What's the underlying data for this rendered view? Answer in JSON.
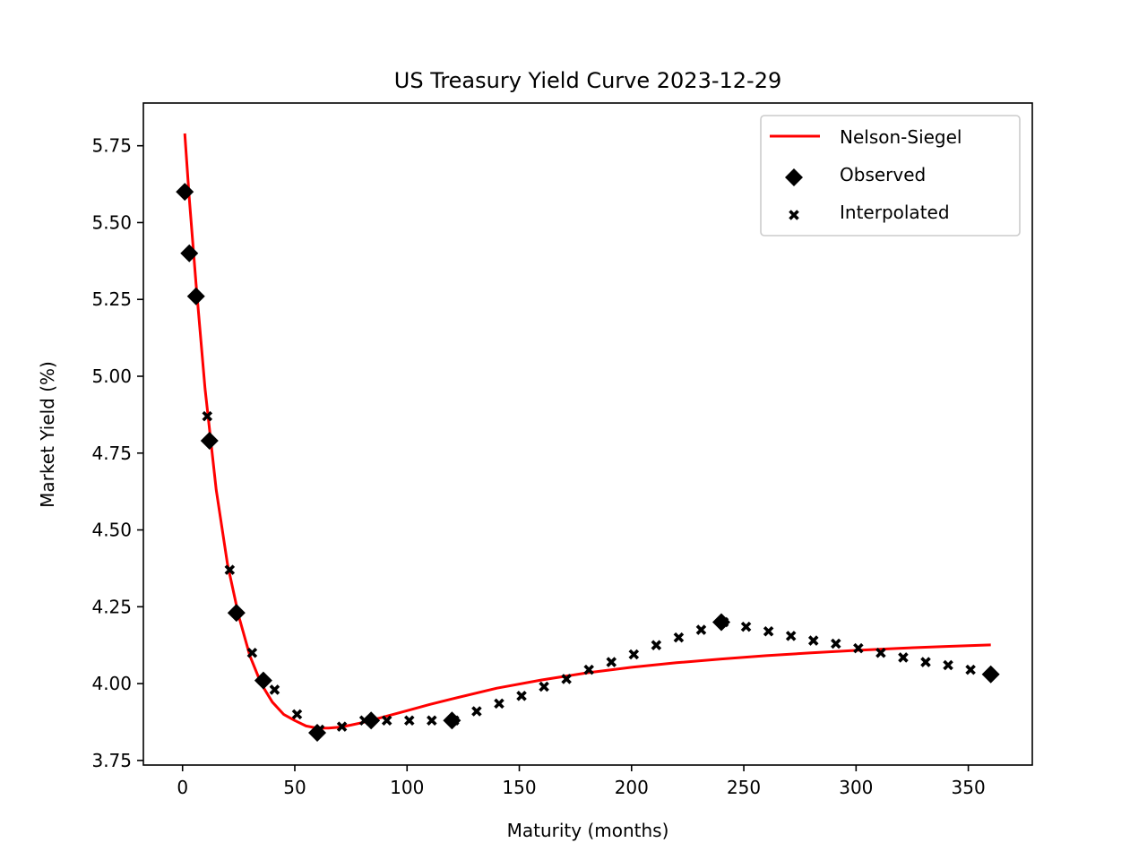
{
  "chart_data": {
    "type": "scatter",
    "title": "US Treasury Yield Curve 2023-12-29",
    "xlabel": "Maturity (months)",
    "ylabel": "Market Yield (%)",
    "xlim": [
      -17.45,
      378.5
    ],
    "ylim": [
      3.735,
      5.889
    ],
    "xticks": [
      0,
      50,
      100,
      150,
      200,
      250,
      300,
      350
    ],
    "yticks": [
      3.75,
      4.0,
      4.25,
      4.5,
      4.75,
      5.0,
      5.25,
      5.5,
      5.75
    ],
    "grid": false,
    "legend": "top-right",
    "series": [
      {
        "name": "Nelson-Siegel",
        "kind": "line",
        "color": "#ff0000",
        "x": [
          1,
          3,
          6,
          10,
          15,
          20,
          25,
          30,
          35,
          40,
          45,
          50,
          55,
          60,
          65,
          70,
          75,
          80,
          90,
          100,
          110,
          120,
          140,
          160,
          180,
          200,
          220,
          240,
          260,
          280,
          300,
          320,
          340,
          360
        ],
        "y": [
          5.79,
          5.58,
          5.3,
          4.96,
          4.63,
          4.39,
          4.22,
          4.09,
          4.0,
          3.94,
          3.9,
          3.88,
          3.862,
          3.855,
          3.855,
          3.858,
          3.865,
          3.873,
          3.892,
          3.912,
          3.932,
          3.95,
          3.985,
          4.012,
          4.035,
          4.053,
          4.068,
          4.08,
          4.091,
          4.1,
          4.108,
          4.115,
          4.121,
          4.126
        ]
      },
      {
        "name": "Observed",
        "kind": "scatter",
        "marker": "diamond",
        "color": "#000000",
        "x": [
          1,
          3,
          6,
          12,
          24,
          36,
          60,
          84,
          120,
          240,
          360
        ],
        "y": [
          5.6,
          5.4,
          5.26,
          4.79,
          4.23,
          4.01,
          3.84,
          3.88,
          3.88,
          4.2,
          4.03
        ]
      },
      {
        "name": "Interpolated",
        "kind": "scatter",
        "marker": "x",
        "color": "#000000",
        "x": [
          11,
          21,
          31,
          41,
          51,
          61,
          71,
          81,
          91,
          101,
          111,
          121,
          131,
          141,
          151,
          161,
          171,
          181,
          191,
          201,
          211,
          221,
          231,
          241,
          251,
          261,
          271,
          281,
          291,
          301,
          311,
          321,
          331,
          341,
          351
        ],
        "y": [
          4.87,
          4.37,
          4.1,
          3.98,
          3.9,
          3.85,
          3.86,
          3.88,
          3.88,
          3.88,
          3.88,
          3.88,
          3.91,
          3.935,
          3.96,
          3.99,
          4.015,
          4.045,
          4.07,
          4.095,
          4.125,
          4.15,
          4.175,
          4.2,
          4.185,
          4.17,
          4.155,
          4.14,
          4.13,
          4.115,
          4.1,
          4.085,
          4.07,
          4.06,
          4.045
        ]
      }
    ]
  }
}
